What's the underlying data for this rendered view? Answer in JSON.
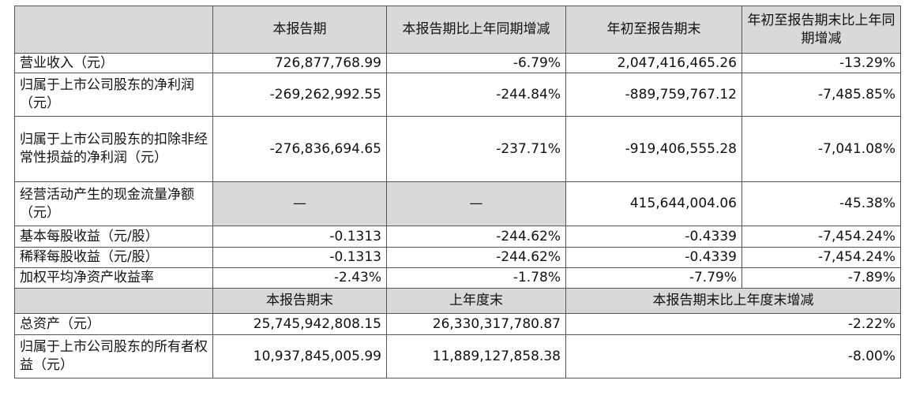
{
  "header": {
    "h1": "本报告期",
    "h2": "本报告期比上年同期增减",
    "h3": "年初至报告期末",
    "h4": "年初至报告期末比上年同期增减"
  },
  "rows": [
    {
      "label": "营业收入（元）",
      "v1": "726,877,768.99",
      "v2": "-6.79%",
      "v3": "2,047,416,465.26",
      "v4": "-13.29%"
    },
    {
      "label": "归属于上市公司股东的净利润（元）",
      "v1": "-269,262,992.55",
      "v2": "-244.84%",
      "v3": "-889,759,767.12",
      "v4": "-7,485.85%"
    },
    {
      "label": "归属于上市公司股东的扣除非经常性损益的净利润（元）",
      "v1": "-276,836,694.65",
      "v2": "-237.71%",
      "v3": "-919,406,555.28",
      "v4": "-7,041.08%"
    },
    {
      "label": "经营活动产生的现金流量净额（元）",
      "v1": "—",
      "v2": "—",
      "v3": "415,644,004.06",
      "v4": "-45.38%"
    },
    {
      "label": "基本每股收益（元/股）",
      "v1": "-0.1313",
      "v2": "-244.62%",
      "v3": "-0.4339",
      "v4": "-7,454.24%"
    },
    {
      "label": "稀释每股收益（元/股）",
      "v1": "-0.1313",
      "v2": "-244.62%",
      "v3": "-0.4339",
      "v4": "-7,454.24%"
    },
    {
      "label": "加权平均净资产收益率",
      "v1": "-2.43%",
      "v2": "-1.78%",
      "v3": "-7.79%",
      "v4": "-7.89%"
    }
  ],
  "header2": {
    "h1": "本报告期末",
    "h2": "上年度末",
    "h3": "本报告期末比上年度末增减"
  },
  "rows2": [
    {
      "label": "总资产（元）",
      "v1": "25,745,942,808.15",
      "v2": "26,330,317,780.87",
      "v3": "-2.22%"
    },
    {
      "label": "归属于上市公司股东的所有者权益（元）",
      "v1": "10,937,845,005.99",
      "v2": "11,889,127,858.38",
      "v3": "-8.00%"
    }
  ]
}
